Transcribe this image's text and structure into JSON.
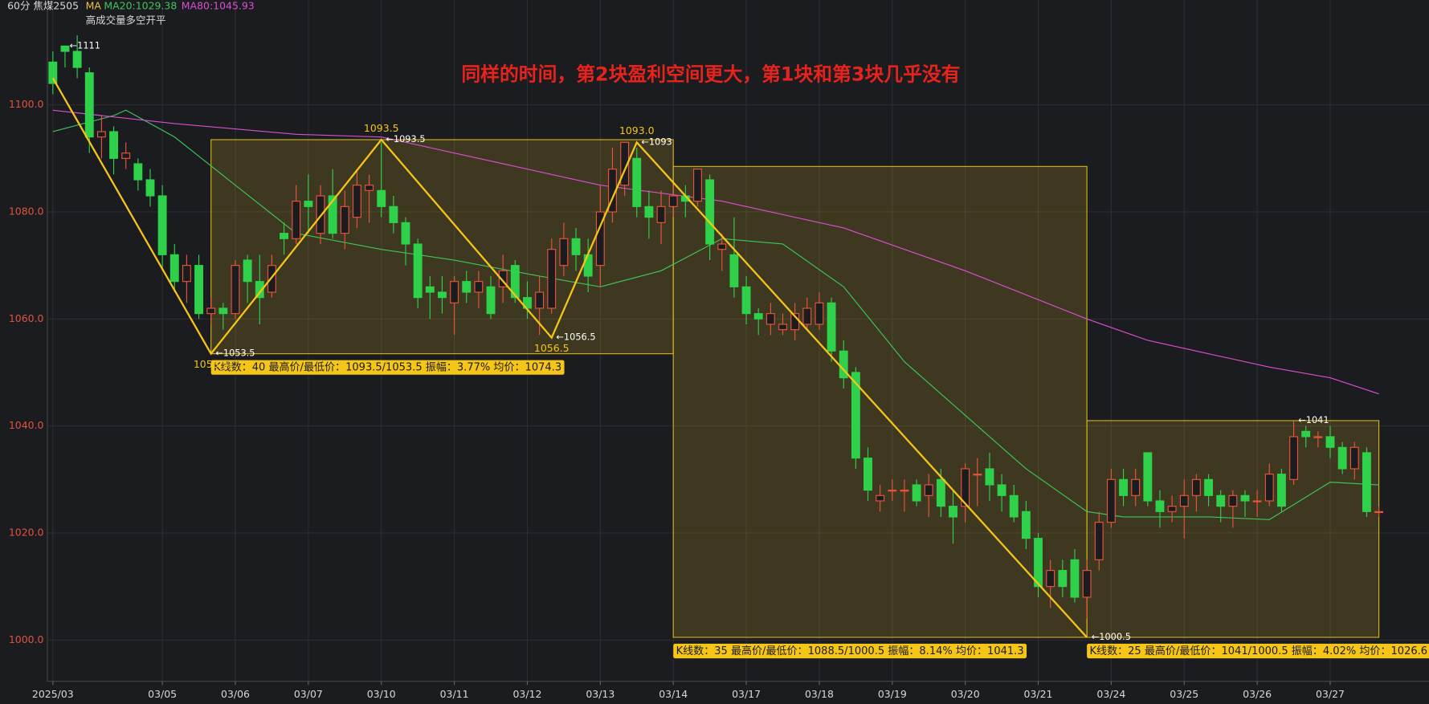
{
  "chart_data": {
    "type": "candlestick",
    "symbol_label": "60分 焦煤2505",
    "indicator": "MA",
    "indicator_note": "高成交量多空开平",
    "annotation": "同样的时间，第2块盈利空间更大，第1块和第3块几乎没有",
    "up_color": "#e8553a",
    "down_color": "#2fd14a",
    "ylim": [
      992.3,
      1119.6
    ],
    "yticks": [
      {
        "value": 1000,
        "label": "1000.0"
      },
      {
        "value": 1020,
        "label": "1020.0"
      },
      {
        "value": 1040,
        "label": "1040.0"
      },
      {
        "value": 1060,
        "label": "1060.0"
      },
      {
        "value": 1080,
        "label": "1080.0"
      },
      {
        "value": 1100,
        "label": "1100.0"
      }
    ],
    "grid": true,
    "categories": [
      "2025/03",
      null,
      null,
      null,
      null,
      null,
      null,
      null,
      null,
      "03/05",
      null,
      null,
      null,
      null,
      null,
      "03/06",
      null,
      null,
      null,
      null,
      null,
      "03/07",
      null,
      null,
      null,
      null,
      null,
      "03/10",
      null,
      null,
      null,
      null,
      null,
      "03/11",
      null,
      null,
      null,
      null,
      null,
      "03/12",
      null,
      null,
      null,
      null,
      null,
      "03/13",
      null,
      null,
      null,
      null,
      null,
      "03/14",
      null,
      null,
      null,
      null,
      null,
      "03/17",
      null,
      null,
      null,
      null,
      null,
      "03/18",
      null,
      null,
      null,
      null,
      null,
      "03/19",
      null,
      null,
      null,
      null,
      null,
      "03/20",
      null,
      null,
      null,
      null,
      null,
      "03/21",
      null,
      null,
      null,
      null,
      null,
      "03/24",
      null,
      null,
      null,
      null,
      null,
      "03/25",
      null,
      null,
      null,
      null,
      null,
      "03/26",
      null,
      null,
      null,
      null,
      null,
      "03/27",
      null,
      null,
      null,
      null
    ],
    "open": [
      1108,
      1111,
      1110,
      1106,
      1094,
      1095,
      1090,
      1089,
      1086,
      1083,
      1072,
      1067,
      1070,
      1061,
      1062,
      1061,
      1071,
      1067,
      1065,
      1076,
      1075,
      1082,
      1076,
      1083,
      1076,
      1079,
      1084,
      1084,
      1081,
      1078,
      1074,
      1066,
      1065,
      1063,
      1067,
      1065,
      1066,
      1066,
      1070,
      1064,
      1062,
      1062,
      1070,
      1075,
      1072,
      1070,
      1080,
      1085,
      1090,
      1081,
      1078,
      1081,
      1083,
      1082,
      1086,
      1073,
      1072,
      1066,
      1061,
      1059,
      1058,
      1058,
      1059,
      1059,
      1063,
      1054,
      1050,
      1034,
      1026,
      1028,
      1028,
      1029,
      1027,
      1030,
      1025,
      1025,
      1031,
      1032,
      1029,
      1027,
      1024,
      1019,
      1010,
      1013,
      1015,
      1008,
      1015,
      1022,
      1030,
      1027,
      1035,
      1026,
      1024,
      1025,
      1027,
      1030,
      1027,
      1025,
      1027,
      1026,
      1026,
      1031,
      1030,
      1039,
      1038,
      1038,
      1036,
      1032,
      1035,
      1024
    ],
    "high": [
      1110,
      1111,
      1113,
      1107,
      1098,
      1096,
      1093,
      1090,
      1088,
      1085,
      1074,
      1072,
      1072,
      1064,
      1063,
      1071,
      1072,
      1072,
      1072,
      1078,
      1085,
      1087,
      1085,
      1088,
      1084,
      1088,
      1087,
      1093,
      1083,
      1079,
      1075,
      1068,
      1068,
      1068,
      1069,
      1069,
      1068,
      1072,
      1071,
      1067,
      1068,
      1075,
      1078,
      1077,
      1075,
      1085,
      1092,
      1093,
      1092,
      1084,
      1084,
      1085,
      1085,
      1088,
      1087,
      1076,
      1079,
      1068,
      1062,
      1063,
      1061,
      1063,
      1064,
      1065,
      1064,
      1056,
      1051,
      1036,
      1029,
      1030,
      1030,
      1030,
      1031,
      1032,
      1028,
      1033,
      1034,
      1035,
      1031,
      1029,
      1026,
      1020,
      1015,
      1015,
      1017,
      1015,
      1024,
      1032,
      1032,
      1032,
      1035,
      1028,
      1027,
      1030,
      1031,
      1031,
      1028,
      1028,
      1028,
      1028,
      1033,
      1032,
      1041,
      1040,
      1039,
      1040,
      1037,
      1037,
      1036,
      1025
    ],
    "low": [
      1102,
      1107,
      1105,
      1091,
      1090,
      1087,
      1088,
      1084,
      1081,
      1069,
      1065,
      1063,
      1060,
      1059,
      1058,
      1060,
      1063,
      1059,
      1064,
      1072,
      1074,
      1076,
      1074,
      1075,
      1073,
      1077,
      1078,
      1079,
      1076,
      1070,
      1062,
      1060,
      1061,
      1057,
      1063,
      1062,
      1060,
      1063,
      1063,
      1060,
      1057,
      1061,
      1068,
      1069,
      1065,
      1066,
      1078,
      1083,
      1079,
      1075,
      1074,
      1079,
      1079,
      1081,
      1071,
      1069,
      1064,
      1059,
      1057,
      1057,
      1057,
      1056,
      1058,
      1058,
      1052,
      1047,
      1032,
      1026,
      1024,
      1026,
      1024,
      1025,
      1023,
      1023,
      1018,
      1022,
      1025,
      1026,
      1024,
      1022,
      1017,
      1008,
      1006,
      1008,
      1007,
      1004,
      1013,
      1021,
      1025,
      1025,
      1025,
      1021,
      1022,
      1019,
      1024,
      1025,
      1022,
      1021,
      1023,
      1023,
      1025,
      1024,
      1029,
      1036,
      1036,
      1034,
      1031,
      1030,
      1023,
      1023
    ],
    "close": [
      1104,
      1110,
      1107,
      1094,
      1095,
      1090,
      1091,
      1086,
      1083,
      1072,
      1067,
      1070,
      1061,
      1062,
      1061,
      1070,
      1067,
      1064,
      1070,
      1075,
      1082,
      1081,
      1083,
      1076,
      1081,
      1085,
      1085,
      1081,
      1078,
      1074,
      1064,
      1065,
      1064,
      1067,
      1065,
      1067,
      1061,
      1069,
      1064,
      1062,
      1065,
      1073,
      1075,
      1072,
      1068,
      1080,
      1088,
      1093,
      1081,
      1079,
      1081,
      1083,
      1082,
      1088,
      1074,
      1074,
      1066,
      1061,
      1060,
      1061,
      1059,
      1061,
      1062,
      1063,
      1054,
      1049,
      1034,
      1028,
      1027,
      1028,
      1028,
      1026,
      1029,
      1025,
      1023,
      1032,
      1031,
      1029,
      1027,
      1023,
      1019,
      1010,
      1013,
      1010,
      1008,
      1013,
      1022,
      1030,
      1027,
      1030,
      1026,
      1024,
      1025,
      1027,
      1030,
      1027,
      1025,
      1027,
      1026,
      1026,
      1031,
      1025,
      1038,
      1038,
      1038,
      1036,
      1032,
      1036,
      1024,
      1024
    ],
    "lines": [
      {
        "name": "MA20:1029.38",
        "color": "#3ec55a",
        "x": [
          0,
          5,
          6,
          10,
          15,
          20,
          27,
          33,
          40,
          45,
          50,
          55,
          60,
          65,
          70,
          75,
          80,
          85,
          88,
          95,
          100,
          105,
          109
        ],
        "values": [
          1095,
          1098,
          1099,
          1094,
          1085,
          1076,
          1073,
          1071,
          1068,
          1066,
          1069,
          1075,
          1074,
          1066,
          1052,
          1042,
          1032,
          1024,
          1023,
          1023,
          1022.5,
          1029.5,
          1029
        ]
      },
      {
        "name": "MA80:1045.93",
        "color": "#d94fd0",
        "x": [
          0,
          10,
          20,
          27,
          35,
          45,
          55,
          65,
          75,
          85,
          90,
          95,
          100,
          105,
          109
        ],
        "values": [
          1099,
          1096.5,
          1094.5,
          1094,
          1090,
          1085,
          1082,
          1077,
          1069,
          1060,
          1056,
          1053.5,
          1051,
          1049,
          1046
        ]
      }
    ],
    "zigzag": {
      "color": "#f5c518",
      "x": [
        0,
        13,
        27,
        41,
        48,
        85
      ],
      "values": [
        1105,
        1053.5,
        1093.5,
        1056.5,
        1093,
        1000.5
      ],
      "value_labels": [
        null,
        "1053.5",
        "1093.5",
        "1056.5",
        "1093.0",
        null
      ]
    },
    "extremes": [
      {
        "x": 1,
        "value": 1111,
        "label": "←1111"
      },
      {
        "x": 13,
        "value": 1053.5,
        "label": "←1053.5"
      },
      {
        "x": 27,
        "value": 1093.5,
        "label": "←1093.5"
      },
      {
        "x": 41,
        "value": 1056.5,
        "label": "←1056.5"
      },
      {
        "x": 48,
        "value": 1093,
        "label": "←1093"
      },
      {
        "x": 85,
        "value": 1000.5,
        "label": "←1000.5"
      },
      {
        "x": 102,
        "value": 1041,
        "label": "←1041"
      }
    ],
    "regions": [
      {
        "from": 13,
        "to": 51,
        "high": 1093.5,
        "low": 1053.5,
        "label": "K线数：40 最高价/最低价：1093.5/1053.5 振幅：3.77% 均价：1074.3"
      },
      {
        "from": 51,
        "to": 85,
        "high": 1088.5,
        "low": 1000.5,
        "label": "K线数：35 最高价/最低价：1088.5/1000.5 振幅：8.14% 均价：1041.3"
      },
      {
        "from": 85,
        "to": 109,
        "high": 1041,
        "low": 1000.5,
        "label": "K线数：25 最高价/最低价：1041/1000.5 振幅：4.02% 均价：1026.6"
      }
    ]
  }
}
